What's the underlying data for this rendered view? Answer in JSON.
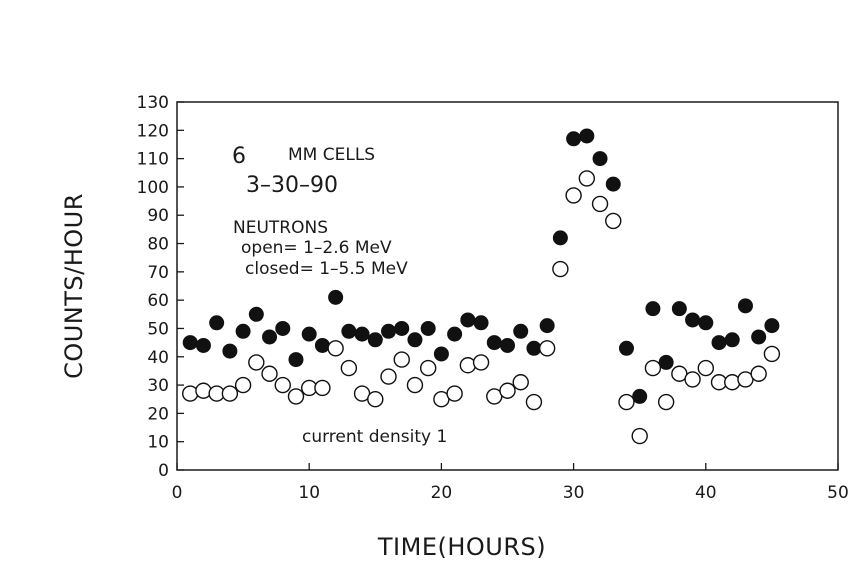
{
  "chart_data": {
    "type": "scatter",
    "xlabel": "TIME(HOURS)",
    "ylabel": "COUNTS/HOUR",
    "xlim": [
      0,
      50
    ],
    "ylim": [
      0,
      130
    ],
    "x_ticks": [
      0,
      10,
      20,
      30,
      40,
      50
    ],
    "y_ticks": [
      0,
      10,
      20,
      30,
      40,
      50,
      60,
      70,
      80,
      90,
      100,
      110,
      120,
      130
    ],
    "grid": false,
    "annotations": {
      "number": "6",
      "cells": "MM CELLS",
      "date": "3–30–90",
      "neutrons": "NEUTRONS",
      "open": "open= 1–2.6 MeV",
      "closed": "closed= 1–5.5 MeV",
      "current": "current density 1"
    },
    "series": [
      {
        "marker": "filled",
        "color": "#111111",
        "x": [
          1,
          2,
          3,
          4,
          5,
          6,
          7,
          8,
          9,
          10,
          11,
          12,
          13,
          14,
          15,
          16,
          17,
          18,
          19,
          20,
          21,
          22,
          23,
          24,
          25,
          26,
          27,
          28,
          29,
          30,
          31,
          32,
          33,
          34,
          35,
          36,
          37,
          38,
          39,
          40,
          41,
          42,
          43,
          44,
          45
        ],
        "y": [
          45,
          44,
          52,
          42,
          49,
          55,
          47,
          50,
          39,
          48,
          44,
          61,
          49,
          48,
          46,
          49,
          50,
          46,
          50,
          41,
          48,
          53,
          52,
          45,
          44,
          49,
          43,
          51,
          82,
          117,
          118,
          110,
          101,
          43,
          26,
          57,
          38,
          57,
          53,
          52,
          45,
          46,
          58,
          47,
          51
        ]
      },
      {
        "marker": "open",
        "color": "#111111",
        "x": [
          1,
          2,
          3,
          4,
          5,
          6,
          7,
          8,
          9,
          10,
          11,
          12,
          13,
          14,
          15,
          16,
          17,
          18,
          19,
          20,
          21,
          22,
          23,
          24,
          25,
          26,
          27,
          28,
          29,
          30,
          31,
          32,
          33,
          34,
          35,
          36,
          37,
          38,
          39,
          40,
          41,
          42,
          43,
          44,
          45
        ],
        "y": [
          27,
          28,
          27,
          27,
          30,
          38,
          34,
          30,
          26,
          29,
          29,
          43,
          36,
          27,
          25,
          33,
          39,
          30,
          36,
          25,
          27,
          37,
          38,
          26,
          28,
          31,
          24,
          43,
          71,
          97,
          103,
          94,
          88,
          24,
          12,
          36,
          24,
          34,
          32,
          36,
          31,
          31,
          32,
          34,
          41
        ]
      }
    ]
  }
}
